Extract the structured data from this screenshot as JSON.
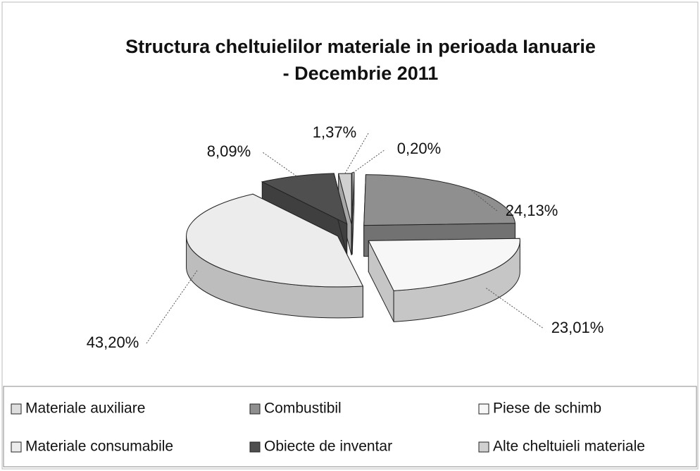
{
  "chart_data": {
    "type": "pie",
    "title": "Structura cheltuielilor materiale in perioada Ianuarie - Decembrie 2011",
    "categories": [
      "Materiale auxiliare",
      "Combustibil",
      "Piese de schimb",
      "Materiale consumabile",
      "Obiecte de inventar",
      "Alte cheltuieli materiale"
    ],
    "values": [
      0.2,
      24.13,
      23.01,
      43.2,
      8.09,
      1.37
    ],
    "value_labels": [
      "0,20%",
      "24,13%",
      "23,01%",
      "43,20%",
      "8,09%",
      "1,37%"
    ],
    "colors": [
      "#dedede",
      "#8f8f8f",
      "#f7f7f7",
      "#ececec",
      "#4f4f4f",
      "#d0d0d0"
    ],
    "legend": "bottom"
  }
}
